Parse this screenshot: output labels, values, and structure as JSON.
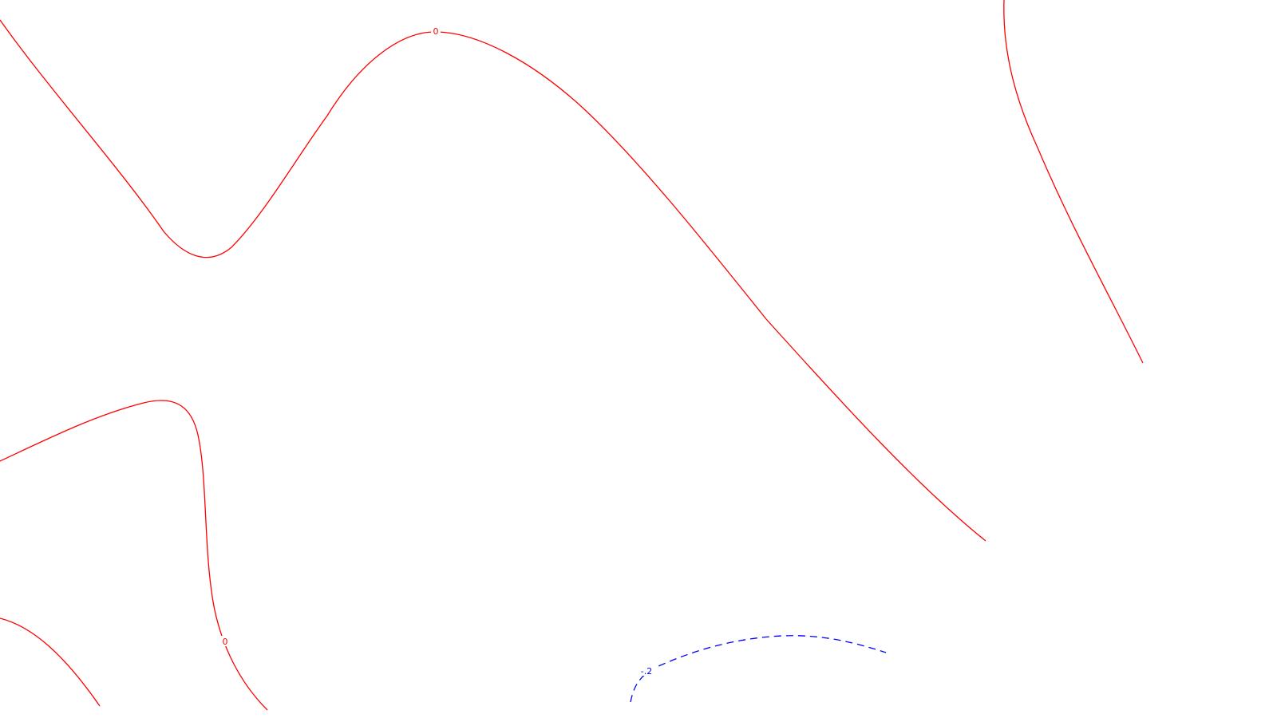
{
  "colors": {
    "background": "#ffffff",
    "zero_contour": "#ff0000",
    "negative_contour": "#0000ff"
  },
  "contours": {
    "zero_label_top": "0",
    "zero_label_bottom": "0",
    "negative_label": "-.2"
  }
}
